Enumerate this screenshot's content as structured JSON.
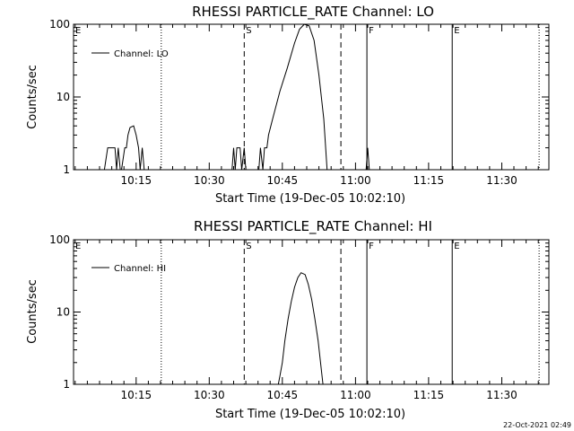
{
  "colors": {
    "background": "#ffffff",
    "ink": "#000000"
  },
  "footer": {
    "timestamp": "22-Oct-2021 02:49"
  },
  "chart_data": [
    {
      "type": "line",
      "title": "RHESSI PARTICLE_RATE Channel: LO",
      "xlabel": "Start Time (19-Dec-05 10:02:10)",
      "ylabel": "Counts/sec",
      "y_scale": "log",
      "xlim": [
        "10:02:10",
        "11:39:40"
      ],
      "ylim": [
        1,
        100
      ],
      "x_ticks": [
        "10:15",
        "10:30",
        "10:45",
        "11:00",
        "11:15",
        "11:30"
      ],
      "y_ticks": [
        "1",
        "10",
        "100"
      ],
      "legend": {
        "position": "top-left",
        "entries": [
          "Channel: LO"
        ]
      },
      "markers": [
        {
          "label": "E",
          "time": "10:02:10",
          "style": "dotted"
        },
        {
          "label": "",
          "time": "10:20:10",
          "style": "dotted"
        },
        {
          "label": "S",
          "time": "10:37:10",
          "style": "dashed"
        },
        {
          "label": "",
          "time": "10:57:00",
          "style": "dashed"
        },
        {
          "label": "F",
          "time": "11:02:20",
          "style": "solid"
        },
        {
          "label": "E",
          "time": "11:19:50",
          "style": "solid"
        },
        {
          "label": "",
          "time": "11:37:40",
          "style": "dotted"
        }
      ],
      "series": [
        {
          "name": "Channel: LO",
          "points": [
            [
              "10:08:30",
              1
            ],
            [
              "10:09:10",
              2
            ],
            [
              "10:10:40",
              2
            ],
            [
              "10:11:00",
              1
            ],
            [
              "10:11:20",
              2
            ],
            [
              "10:11:45",
              1
            ],
            [
              "10:12:00",
              1
            ],
            [
              "10:12:40",
              2
            ],
            [
              "10:13:00",
              2
            ],
            [
              "10:13:20",
              3
            ],
            [
              "10:13:45",
              3.8
            ],
            [
              "10:14:30",
              4
            ],
            [
              "10:15:00",
              3
            ],
            [
              "10:15:30",
              2
            ],
            [
              "10:15:50",
              1
            ],
            [
              "10:16:15",
              2
            ],
            [
              "10:16:40",
              1
            ],
            [
              "10:34:40",
              1
            ],
            [
              "10:35:00",
              2
            ],
            [
              "10:35:20",
              1
            ],
            [
              "10:35:40",
              2
            ],
            [
              "10:36:20",
              2
            ],
            [
              "10:36:40",
              1
            ],
            [
              "10:37:10",
              2
            ],
            [
              "10:37:30",
              1
            ],
            [
              "10:40:10",
              1
            ],
            [
              "10:40:30",
              2
            ],
            [
              "10:41:00",
              1
            ],
            [
              "10:41:20",
              2
            ],
            [
              "10:41:50",
              2
            ],
            [
              "10:42:10",
              3
            ],
            [
              "10:43:00",
              5
            ],
            [
              "10:44:30",
              12
            ],
            [
              "10:46:00",
              25
            ],
            [
              "10:47:30",
              55
            ],
            [
              "10:48:30",
              85
            ],
            [
              "10:49:30",
              100
            ],
            [
              "10:50:30",
              95
            ],
            [
              "10:51:30",
              60
            ],
            [
              "10:52:30",
              20
            ],
            [
              "10:53:30",
              5
            ],
            [
              "10:54:10",
              1
            ],
            [
              "11:02:10",
              1
            ],
            [
              "11:02:30",
              2
            ],
            [
              "11:02:50",
              1
            ]
          ]
        }
      ]
    },
    {
      "type": "line",
      "title": "RHESSI PARTICLE_RATE Channel: HI",
      "xlabel": "Start Time (19-Dec-05 10:02:10)",
      "ylabel": "Counts/sec",
      "y_scale": "log",
      "xlim": [
        "10:02:10",
        "11:39:40"
      ],
      "ylim": [
        1,
        100
      ],
      "x_ticks": [
        "10:15",
        "10:30",
        "10:45",
        "11:00",
        "11:15",
        "11:30"
      ],
      "y_ticks": [
        "1",
        "10",
        "100"
      ],
      "legend": {
        "position": "top-left",
        "entries": [
          "Channel: HI"
        ]
      },
      "markers": [
        {
          "label": "E",
          "time": "10:02:10",
          "style": "dotted"
        },
        {
          "label": "",
          "time": "10:20:10",
          "style": "dotted"
        },
        {
          "label": "S",
          "time": "10:37:10",
          "style": "dashed"
        },
        {
          "label": "",
          "time": "10:57:00",
          "style": "dashed"
        },
        {
          "label": "F",
          "time": "11:02:20",
          "style": "solid"
        },
        {
          "label": "E",
          "time": "11:19:50",
          "style": "solid"
        },
        {
          "label": "",
          "time": "11:37:40",
          "style": "dotted"
        }
      ],
      "series": [
        {
          "name": "Channel: HI",
          "points": [
            [
              "10:44:10",
              1
            ],
            [
              "10:44:30",
              1.3
            ],
            [
              "10:45:00",
              2
            ],
            [
              "10:45:30",
              4
            ],
            [
              "10:46:10",
              8
            ],
            [
              "10:46:50",
              14
            ],
            [
              "10:47:30",
              22
            ],
            [
              "10:48:10",
              30
            ],
            [
              "10:48:50",
              35
            ],
            [
              "10:49:40",
              33
            ],
            [
              "10:50:20",
              24
            ],
            [
              "10:51:00",
              15
            ],
            [
              "10:51:40",
              8
            ],
            [
              "10:52:20",
              4
            ],
            [
              "10:52:50",
              2
            ],
            [
              "10:53:20",
              1
            ]
          ]
        }
      ]
    }
  ]
}
